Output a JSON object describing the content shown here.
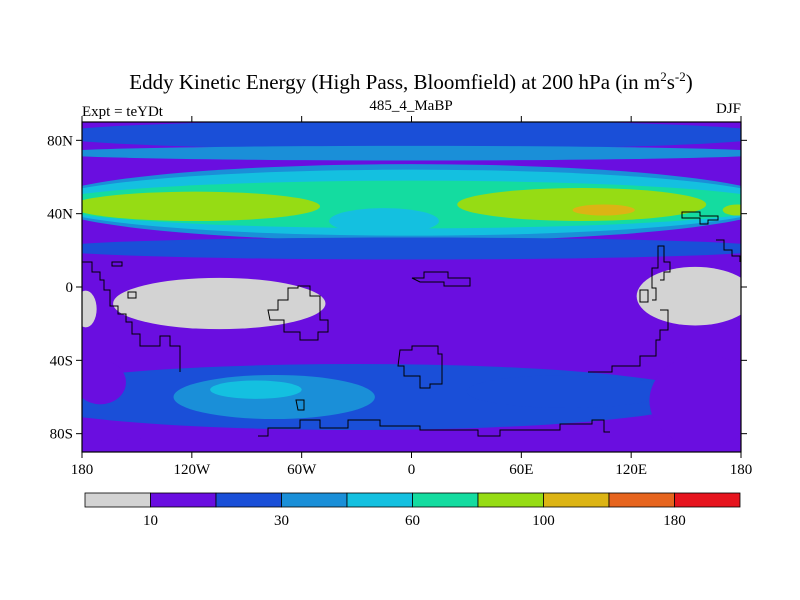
{
  "chart_data": {
    "type": "heatmap",
    "title_main": "Eddy Kinetic Energy (High Pass, Bloomfield) at 200 hPa (in m",
    "title_sup1": "2",
    "title_mid": "s",
    "title_sup2": "-2",
    "title_close": ")",
    "subtitle_left": "Expt = teYDt",
    "subtitle_center": "485_4_MaBP",
    "subtitle_right": "DJF",
    "xrange": [
      -180,
      180
    ],
    "yrange": [
      -90,
      90
    ],
    "xticks": [
      {
        "value": -180,
        "label": "180"
      },
      {
        "value": -120,
        "label": "120W"
      },
      {
        "value": -60,
        "label": "60W"
      },
      {
        "value": 0,
        "label": "0"
      },
      {
        "value": 60,
        "label": "60E"
      },
      {
        "value": 120,
        "label": "120E"
      },
      {
        "value": 180,
        "label": "180"
      }
    ],
    "yticks": [
      {
        "value": 80,
        "label": "80N"
      },
      {
        "value": 40,
        "label": "40N"
      },
      {
        "value": 0,
        "label": "0"
      },
      {
        "value": -40,
        "label": "40S"
      },
      {
        "value": -80,
        "label": "80S"
      }
    ],
    "colorbar": {
      "colors": [
        "#d3d3d3",
        "#6a0ee0",
        "#1a4fd8",
        "#1a8fd8",
        "#14c0e0",
        "#14dca0",
        "#96dc14",
        "#dcb414",
        "#e6641e",
        "#e6141e"
      ],
      "labels": [
        {
          "after_box": 1,
          "label": "10"
        },
        {
          "after_box": 3,
          "label": "30"
        },
        {
          "after_box": 5,
          "label": "60"
        },
        {
          "after_box": 7,
          "label": "100"
        },
        {
          "after_box": 9,
          "label": "180"
        }
      ]
    },
    "features": [
      {
        "name": "north-pole-band",
        "level": 2,
        "center": [
          0,
          83
        ],
        "radius": [
          200,
          8
        ]
      },
      {
        "name": "north-polar-ring",
        "level": 3,
        "center": [
          0,
          73
        ],
        "radius": [
          200,
          4
        ]
      },
      {
        "name": "north-midlat-band-outer",
        "level": 3,
        "center": [
          0,
          46
        ],
        "radius": [
          200,
          21
        ]
      },
      {
        "name": "north-midlat-band-mid",
        "level": 4,
        "center": [
          0,
          46
        ],
        "radius": [
          200,
          18
        ]
      },
      {
        "name": "north-midlat-band-inner",
        "level": 5,
        "center": [
          0,
          45
        ],
        "radius": [
          200,
          13
        ]
      },
      {
        "name": "atlantic-pacific-gap",
        "level": 4,
        "center": [
          -15,
          36
        ],
        "radius": [
          30,
          7
        ]
      },
      {
        "name": "north-pacific-jet",
        "level": 6,
        "center": [
          -118,
          44
        ],
        "radius": [
          68,
          8
        ]
      },
      {
        "name": "north-asia-jet",
        "level": 6,
        "center": [
          93,
          45
        ],
        "radius": [
          68,
          9
        ]
      },
      {
        "name": "asia-jet-core",
        "level": 7,
        "center": [
          105,
          42
        ],
        "radius": [
          17,
          3
        ]
      },
      {
        "name": "dateline-edge-jet",
        "level": 6,
        "center": [
          178,
          42
        ],
        "radius": [
          8,
          3
        ]
      },
      {
        "name": "subtropical-north",
        "level": 2,
        "center": [
          0,
          21
        ],
        "radius": [
          200,
          6
        ]
      },
      {
        "name": "southern-storm-track",
        "level": 2,
        "center": [
          -30,
          -60
        ],
        "radius": [
          190,
          18
        ]
      },
      {
        "name": "southern-storm-track-east",
        "level": 2,
        "center": [
          85,
          -57
        ],
        "radius": [
          55,
          9
        ]
      },
      {
        "name": "south-atlantic-core",
        "level": 3,
        "center": [
          -75,
          -60
        ],
        "radius": [
          55,
          12
        ]
      },
      {
        "name": "south-atlantic-inner",
        "level": 4,
        "center": [
          -85,
          -56
        ],
        "radius": [
          25,
          5
        ]
      },
      {
        "name": "south-polar-band",
        "level": 1,
        "center": [
          0,
          -88
        ],
        "radius": [
          200,
          8
        ]
      },
      {
        "name": "south-pacific-calm",
        "level": 1,
        "center": [
          -170,
          -52
        ],
        "radius": [
          14,
          12
        ]
      },
      {
        "name": "south-east-calm",
        "level": 1,
        "center": [
          160,
          -62
        ],
        "radius": [
          30,
          25
        ]
      },
      {
        "name": "tropical-calm-west",
        "level": 0,
        "center": [
          -105,
          -9
        ],
        "radius": [
          58,
          14
        ]
      },
      {
        "name": "tropical-calm-east",
        "level": 0,
        "center": [
          155,
          -5
        ],
        "radius": [
          32,
          16
        ]
      },
      {
        "name": "tropical-calm-edge",
        "level": 0,
        "center": [
          -178,
          -12
        ],
        "radius": [
          6,
          10
        ]
      }
    ]
  }
}
